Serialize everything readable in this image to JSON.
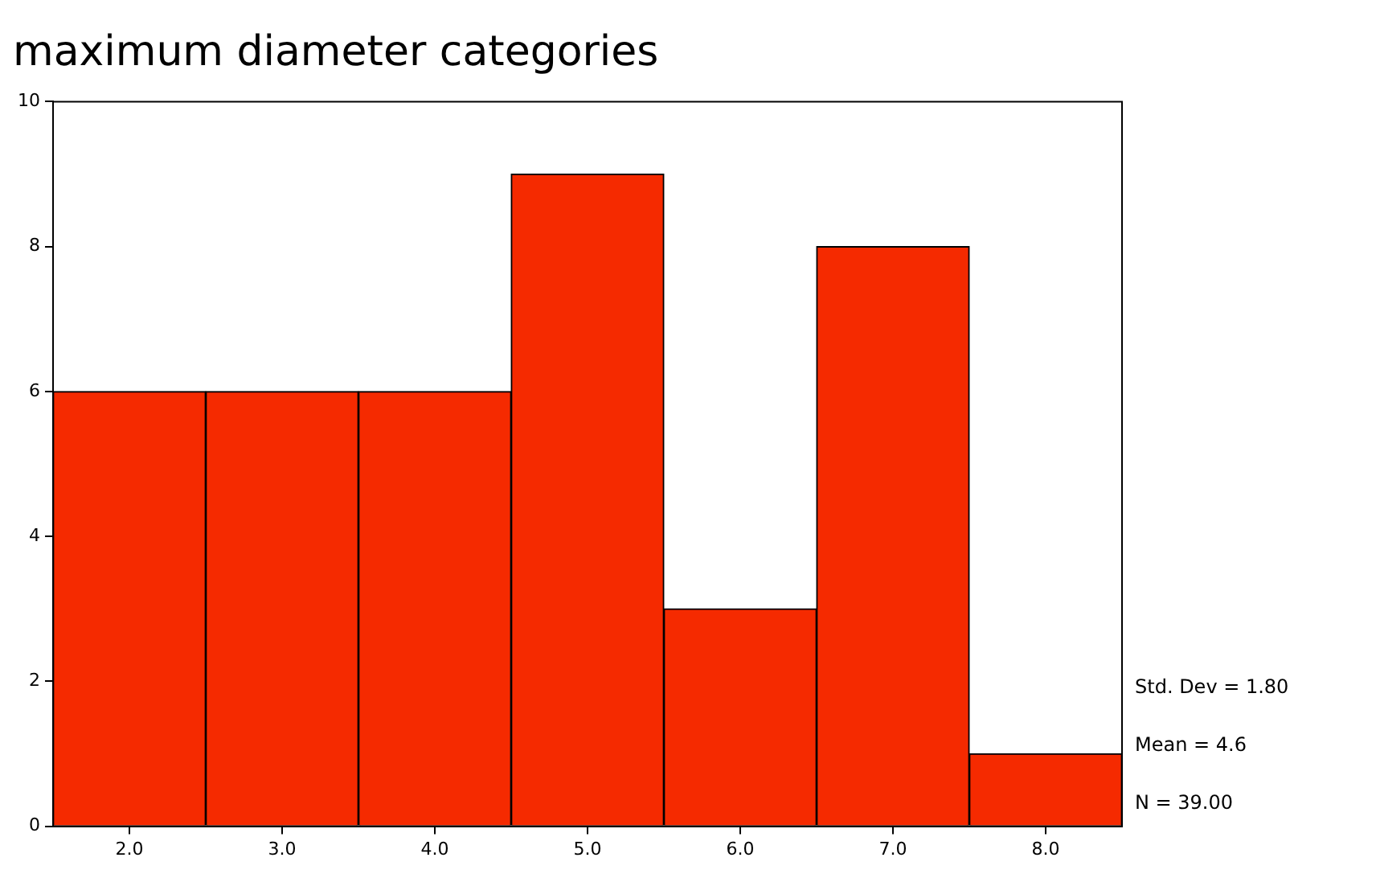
{
  "chart_data": {
    "type": "bar",
    "title": "maximum diameter categories",
    "categories": [
      "2.0",
      "3.0",
      "4.0",
      "5.0",
      "6.0",
      "7.0",
      "8.0"
    ],
    "values": [
      6,
      6,
      6,
      9,
      3,
      8,
      1
    ],
    "color": "#f52a00",
    "ylim": [
      0,
      10
    ],
    "yticks": [
      0,
      2,
      4,
      6,
      8,
      10
    ],
    "annotations": [
      "Std. Dev = 1.80",
      "Mean = 4.6",
      "N = 39.00"
    ]
  }
}
